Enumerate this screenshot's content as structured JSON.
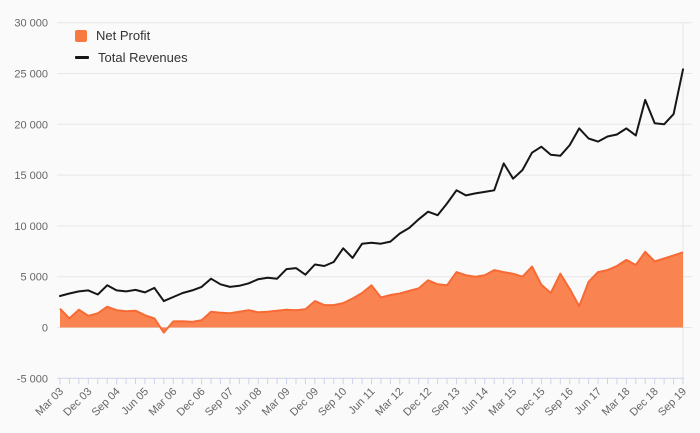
{
  "colors": {
    "background": "#fafafa",
    "net_profit_fill": "#f87a42",
    "net_profit_line": "#f76a33",
    "revenue_line": "#161616",
    "grid": "#e6e6e6",
    "axis": "#ccd4ea",
    "label": "#666666",
    "legend_text": "#333333",
    "plot_border": "#e7e7e7"
  },
  "chart_data": {
    "type": "area",
    "title": "",
    "xlabel": "",
    "ylabel": "",
    "ylim": [
      -5000,
      30000
    ],
    "ytick_step": 5000,
    "ytick_labels": [
      "-5 000",
      "0",
      "5 000",
      "10 000",
      "15 000",
      "20 000",
      "25 000",
      "30 000"
    ],
    "grid": true,
    "legend_position": "top-left",
    "x_label_every": 3,
    "x_labels_shown": [
      "Mar 03",
      "Dec 03",
      "Sep 04",
      "Jun 05",
      "Mar 06",
      "Dec 06",
      "Sep 07",
      "Jun 08",
      "Mar 09",
      "Dec 09",
      "Sep 10",
      "Jun 11",
      "Mar 12",
      "Dec 12",
      "Sep 13",
      "Jun 14",
      "Mar 15",
      "Dec 15",
      "Sep 16",
      "Jun 17",
      "Mar 18",
      "Dec 18",
      "Sep 19"
    ],
    "categories": [
      "Mar 03",
      "Jun 03",
      "Sep 03",
      "Dec 03",
      "Mar 04",
      "Jun 04",
      "Sep 04",
      "Dec 04",
      "Mar 05",
      "Jun 05",
      "Sep 05",
      "Dec 05",
      "Mar 06",
      "Jun 06",
      "Sep 06",
      "Dec 06",
      "Mar 07",
      "Jun 07",
      "Sep 07",
      "Dec 07",
      "Mar 08",
      "Jun 08",
      "Sep 08",
      "Dec 08",
      "Mar 09",
      "Jun 09",
      "Sep 09",
      "Dec 09",
      "Mar 10",
      "Jun 10",
      "Sep 10",
      "Dec 10",
      "Mar 11",
      "Jun 11",
      "Sep 11",
      "Dec 11",
      "Mar 12",
      "Jun 12",
      "Sep 12",
      "Dec 12",
      "Mar 13",
      "Jun 13",
      "Sep 13",
      "Dec 13",
      "Mar 14",
      "Jun 14",
      "Sep 14",
      "Dec 14",
      "Mar 15",
      "Jun 15",
      "Sep 15",
      "Dec 15",
      "Mar 16",
      "Jun 16",
      "Sep 16",
      "Dec 16",
      "Mar 17",
      "Jun 17",
      "Sep 17",
      "Dec 17",
      "Mar 18",
      "Jun 18",
      "Sep 18",
      "Dec 18",
      "Mar 19",
      "Jun 19",
      "Sep 19"
    ],
    "series": [
      {
        "name": "Net Profit",
        "type": "area",
        "values": [
          1850,
          900,
          1750,
          1150,
          1400,
          2050,
          1700,
          1600,
          1650,
          1200,
          900,
          -500,
          600,
          620,
          550,
          720,
          1550,
          1450,
          1400,
          1550,
          1700,
          1500,
          1550,
          1650,
          1750,
          1700,
          1800,
          2600,
          2200,
          2200,
          2400,
          2850,
          3400,
          4150,
          2950,
          3200,
          3350,
          3600,
          3850,
          4650,
          4250,
          4150,
          5450,
          5150,
          5000,
          5150,
          5650,
          5450,
          5300,
          5000,
          6000,
          4200,
          3400,
          5300,
          3800,
          2100,
          4500,
          5450,
          5650,
          6050,
          6650,
          6150,
          7450,
          6500,
          6800,
          7100,
          7400
        ]
      },
      {
        "name": "Total Revenues",
        "type": "line",
        "values": [
          3100,
          3350,
          3550,
          3650,
          3250,
          4150,
          3650,
          3550,
          3700,
          3450,
          3900,
          2600,
          3000,
          3400,
          3650,
          4000,
          4800,
          4250,
          4000,
          4100,
          4350,
          4750,
          4900,
          4800,
          5750,
          5850,
          5200,
          6200,
          6050,
          6450,
          7800,
          6850,
          8250,
          8350,
          8250,
          8450,
          9250,
          9800,
          10650,
          11400,
          11050,
          12200,
          13500,
          13000,
          13200,
          13350,
          13500,
          16150,
          14650,
          15500,
          17200,
          17800,
          17000,
          16900,
          17950,
          19600,
          18600,
          18300,
          18800,
          19000,
          19600,
          18900,
          22400,
          20100,
          20000,
          21000,
          25400
        ]
      }
    ]
  },
  "legend": {
    "items": [
      {
        "label": "Net Profit",
        "swatch": "orange-square-swatch"
      },
      {
        "label": "Total Revenues",
        "swatch": "black-line-swatch"
      }
    ]
  }
}
